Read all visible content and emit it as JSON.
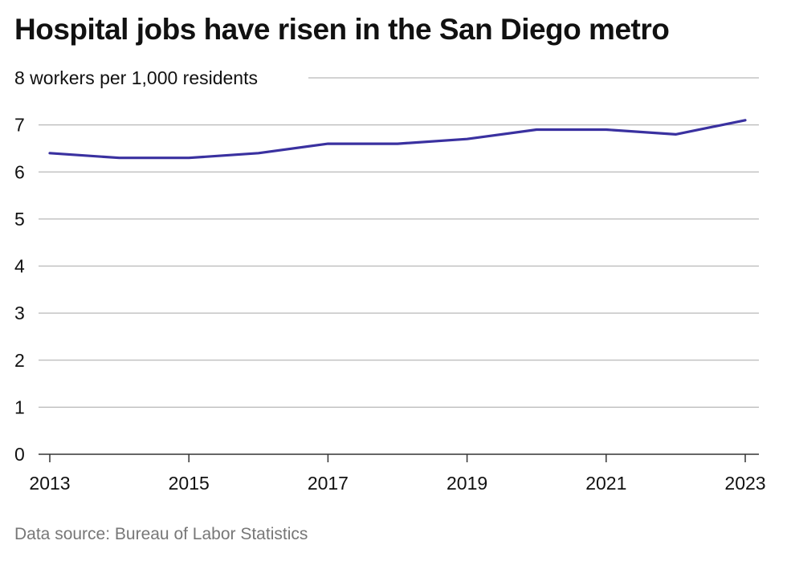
{
  "title": "Hospital jobs have risen in the San Diego metro",
  "source": "Data source: Bureau of Labor Statistics",
  "colors": {
    "line": "#3a31a0",
    "grid": "#b8b8b8",
    "text": "#111111",
    "source_text": "#777777"
  },
  "chart_data": {
    "type": "line",
    "title": "Hospital jobs have risen in the San Diego metro",
    "ylabel": "workers per 1,000 residents",
    "top_tick_label": "8 workers per 1,000 residents",
    "x": [
      2013,
      2014,
      2015,
      2016,
      2017,
      2018,
      2019,
      2020,
      2021,
      2022,
      2023
    ],
    "series": [
      {
        "values": [
          6.4,
          6.3,
          6.3,
          6.4,
          6.6,
          6.6,
          6.7,
          6.9,
          6.9,
          6.8,
          7.1
        ]
      }
    ],
    "x_ticks": [
      "2013",
      "2015",
      "2017",
      "2019",
      "2021",
      "2023"
    ],
    "y_ticks": [
      "0",
      "1",
      "2",
      "3",
      "4",
      "5",
      "6",
      "7"
    ],
    "ylim": [
      0,
      8
    ],
    "xlim": [
      2013,
      2023
    ],
    "grid": true
  }
}
